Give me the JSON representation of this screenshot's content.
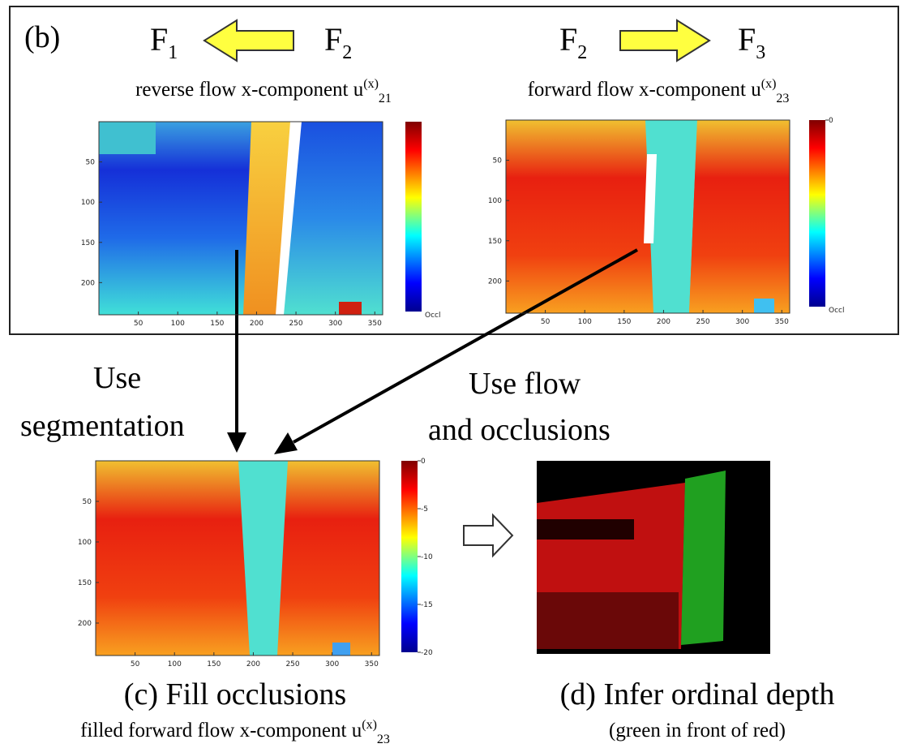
{
  "panel_b": {
    "label": "(b)",
    "left_header": {
      "from": {
        "symbol": "F",
        "sub": "1"
      },
      "to": {
        "symbol": "F",
        "sub": "2"
      }
    },
    "right_header": {
      "from": {
        "symbol": "F",
        "sub": "2"
      },
      "to": {
        "symbol": "F",
        "sub": "3"
      }
    },
    "left_plot": {
      "caption": {
        "text": "reverse flow x-component u",
        "sup": "(x)",
        "sub": "21"
      },
      "xticks": [
        50,
        100,
        150,
        200,
        250,
        300,
        350
      ],
      "yticks": [
        50,
        100,
        150,
        200
      ],
      "colorbar_ticks": [
        "Occl"
      ]
    },
    "right_plot": {
      "caption": {
        "text": "forward flow x-component u",
        "sup": "(x)",
        "sub": "23"
      },
      "xticks": [
        50,
        100,
        150,
        200,
        250,
        300,
        350
      ],
      "yticks": [
        50,
        100,
        150,
        200
      ],
      "colorbar_ticks": [
        0,
        "Occl"
      ]
    }
  },
  "steps": {
    "left": [
      "Use",
      "segmentation"
    ],
    "right": [
      "Use flow",
      "and occlusions"
    ]
  },
  "panel_c": {
    "title": "(c) Fill occlusions",
    "caption": {
      "text": "filled forward flow x-component u",
      "sup": "(x)",
      "sub": "23"
    },
    "xticks": [
      50,
      100,
      150,
      200,
      250,
      300,
      350
    ],
    "yticks": [
      50,
      100,
      150,
      200
    ],
    "colorbar_ticks": [
      0,
      -5,
      -10,
      -15,
      -20
    ]
  },
  "panel_d": {
    "title": "(d) Infer ordinal depth",
    "caption": "(green in front of red)"
  }
}
